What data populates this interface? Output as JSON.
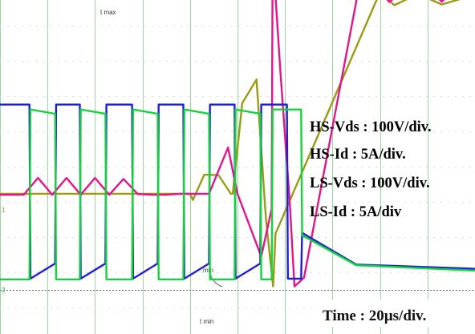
{
  "chart_data": {
    "type": "line",
    "title": "",
    "xlabel": "Time : 20µs/div.",
    "ylabel": "",
    "grid": true,
    "legend_placement": "right",
    "time_per_div_us": 20,
    "x_range_us": [
      0,
      200
    ],
    "ch_markers": [
      "1",
      "2"
    ],
    "trigger_markers": [
      "t max",
      "t min",
      "min"
    ],
    "series": [
      {
        "name": "HS-Vds : 100V/div.",
        "color": "#1f1fd2",
        "scale": "100V/div.",
        "x": [
          0,
          6.2,
          6.4,
          11.6,
          11.8,
          16.8,
          17.0,
          22.2,
          22.4,
          27.8,
          28.0,
          33.2,
          33.4,
          38.6,
          38.8,
          44.0,
          44.2,
          49.4,
          49.6,
          54.8,
          55.0,
          60.4,
          60.6,
          63.4,
          63.6,
          75,
          100
        ],
        "y_div": [
          5.26,
          5.26,
          0.32,
          0.75,
          5.26,
          5.26,
          0.32,
          0.75,
          5.26,
          5.26,
          0.32,
          0.75,
          5.26,
          5.26,
          0.32,
          0.75,
          5.26,
          5.26,
          0.32,
          0.75,
          5.26,
          5.26,
          0.32,
          0.32,
          1.62,
          0.72,
          0.6
        ]
      },
      {
        "name": "HS-Id : 5A/div.",
        "color": "#9a9a14",
        "scale": "5A/div.",
        "x": [
          0,
          40,
          40.6,
          43,
          46,
          48.6,
          49,
          51,
          54,
          56,
          57.5,
          58,
          80,
          83,
          88,
          93,
          98,
          100
        ],
        "y_div": [
          2.73,
          2.73,
          2.55,
          3.27,
          3.26,
          2.73,
          2.73,
          5.3,
          5.97,
          2.0,
          0.1,
          1.6,
          8.45,
          8.08,
          8.4,
          8.1,
          8.3,
          8.32
        ]
      },
      {
        "name": "LS-Vds : 100V/div.",
        "color": "#e0168c",
        "scale": "100V/div.",
        "x": [
          0,
          5,
          8,
          11,
          14,
          17,
          20,
          23,
          26,
          29,
          32,
          35,
          38,
          44,
          48,
          50,
          55,
          57.2,
          57.4,
          59,
          61,
          62,
          64,
          77,
          79,
          82,
          88,
          93,
          98,
          100
        ],
        "y_div": [
          2.7,
          2.7,
          3.18,
          2.7,
          3.18,
          2.7,
          3.18,
          2.7,
          3.15,
          2.72,
          2.7,
          2.7,
          2.73,
          2.73,
          4.04,
          2.73,
          0.95,
          2.3,
          9.6,
          6.25,
          2.5,
          0.1,
          0.35,
          9.6,
          8.6,
          8.17,
          8.84,
          8.18,
          8.84,
          8.5
        ]
      },
      {
        "name": "LS-Id : 5A/div",
        "color": "#14d43c",
        "scale": "5A/div",
        "x": [
          0,
          6.2,
          6.4,
          11.6,
          11.8,
          16.8,
          17.0,
          22.2,
          22.4,
          27.8,
          28.0,
          33.2,
          33.4,
          38.6,
          38.8,
          44.0,
          44.2,
          49.4,
          49.6,
          54.8,
          55.0,
          57.2,
          57.4,
          63.4,
          63.6,
          75,
          100
        ],
        "y_div": [
          0.3,
          0.3,
          5.12,
          5.0,
          0.3,
          0.3,
          5.12,
          5.0,
          0.3,
          0.3,
          5.12,
          5.0,
          0.3,
          0.3,
          5.12,
          5.0,
          0.3,
          0.3,
          5.12,
          5.0,
          0.3,
          0.3,
          5.12,
          5.12,
          1.55,
          0.7,
          0.55
        ]
      }
    ]
  }
}
